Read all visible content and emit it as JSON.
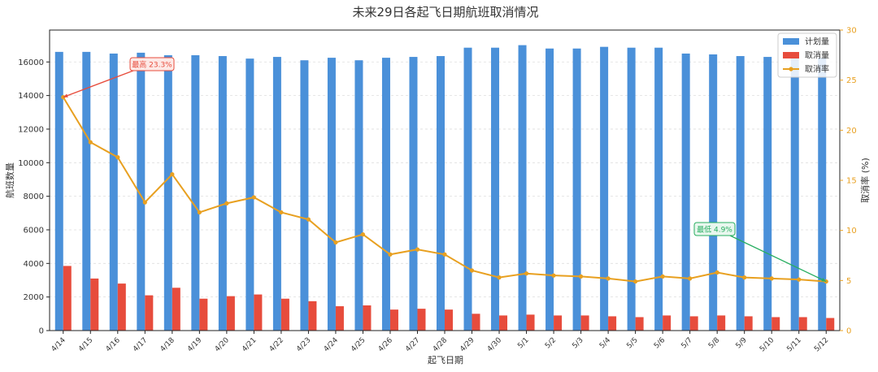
{
  "chart_data": {
    "type": "bar+line",
    "title": "未来29日各起飞日期航班取消情况",
    "xlabel": "起飞日期",
    "ylabel_left": "航班数量",
    "ylabel_right": "取消率 (%)",
    "ylim_left": [
      0,
      17900
    ],
    "ylim_right": [
      0,
      30
    ],
    "yticks_left": [
      0,
      2000,
      4000,
      6000,
      8000,
      10000,
      12000,
      14000,
      16000
    ],
    "yticks_right": [
      0,
      5,
      10,
      15,
      20,
      25,
      30
    ],
    "categories": [
      "4/14",
      "4/15",
      "4/16",
      "4/17",
      "4/18",
      "4/19",
      "4/20",
      "4/21",
      "4/22",
      "4/23",
      "4/24",
      "4/25",
      "4/26",
      "4/27",
      "4/28",
      "4/29",
      "4/30",
      "5/1",
      "5/2",
      "5/3",
      "5/4",
      "5/5",
      "5/6",
      "5/7",
      "5/8",
      "5/9",
      "5/10",
      "5/11",
      "5/12"
    ],
    "series": [
      {
        "name": "计划量",
        "kind": "bar",
        "color": "#4a90d9",
        "values": [
          16600,
          16600,
          16500,
          16550,
          16400,
          16400,
          16350,
          16200,
          16300,
          16100,
          16250,
          16100,
          16250,
          16300,
          16350,
          16850,
          16850,
          17000,
          16800,
          16800,
          16900,
          16850,
          16850,
          16500,
          16450,
          16350,
          16300,
          16300,
          16250
        ]
      },
      {
        "name": "取消量",
        "kind": "bar",
        "color": "#e74c3c",
        "values": [
          3850,
          3100,
          2800,
          2100,
          2550,
          1900,
          2050,
          2150,
          1900,
          1750,
          1450,
          1500,
          1250,
          1300,
          1250,
          1000,
          900,
          950,
          900,
          900,
          850,
          800,
          900,
          850,
          900,
          850,
          800,
          800,
          750
        ]
      },
      {
        "name": "取消率",
        "kind": "line",
        "color": "#e8a020",
        "values": [
          23.3,
          18.8,
          17.3,
          12.8,
          15.6,
          11.8,
          12.7,
          13.3,
          11.8,
          11.1,
          8.8,
          9.6,
          7.6,
          8.1,
          7.6,
          6.0,
          5.3,
          5.7,
          5.5,
          5.4,
          5.2,
          4.9,
          5.4,
          5.2,
          5.8,
          5.3,
          5.2,
          5.1,
          4.9
        ]
      }
    ],
    "annotations": [
      {
        "label": "最高 23.3%",
        "target_index": 0,
        "target_value": 23.3,
        "color": "#e74c3c",
        "bg": "#fde9e6"
      },
      {
        "label": "最低 4.9%",
        "target_index": 28,
        "target_value": 4.9,
        "color": "#27ae60",
        "bg": "#e8f7ee"
      }
    ],
    "legend_position": "top-right",
    "grid": true
  }
}
